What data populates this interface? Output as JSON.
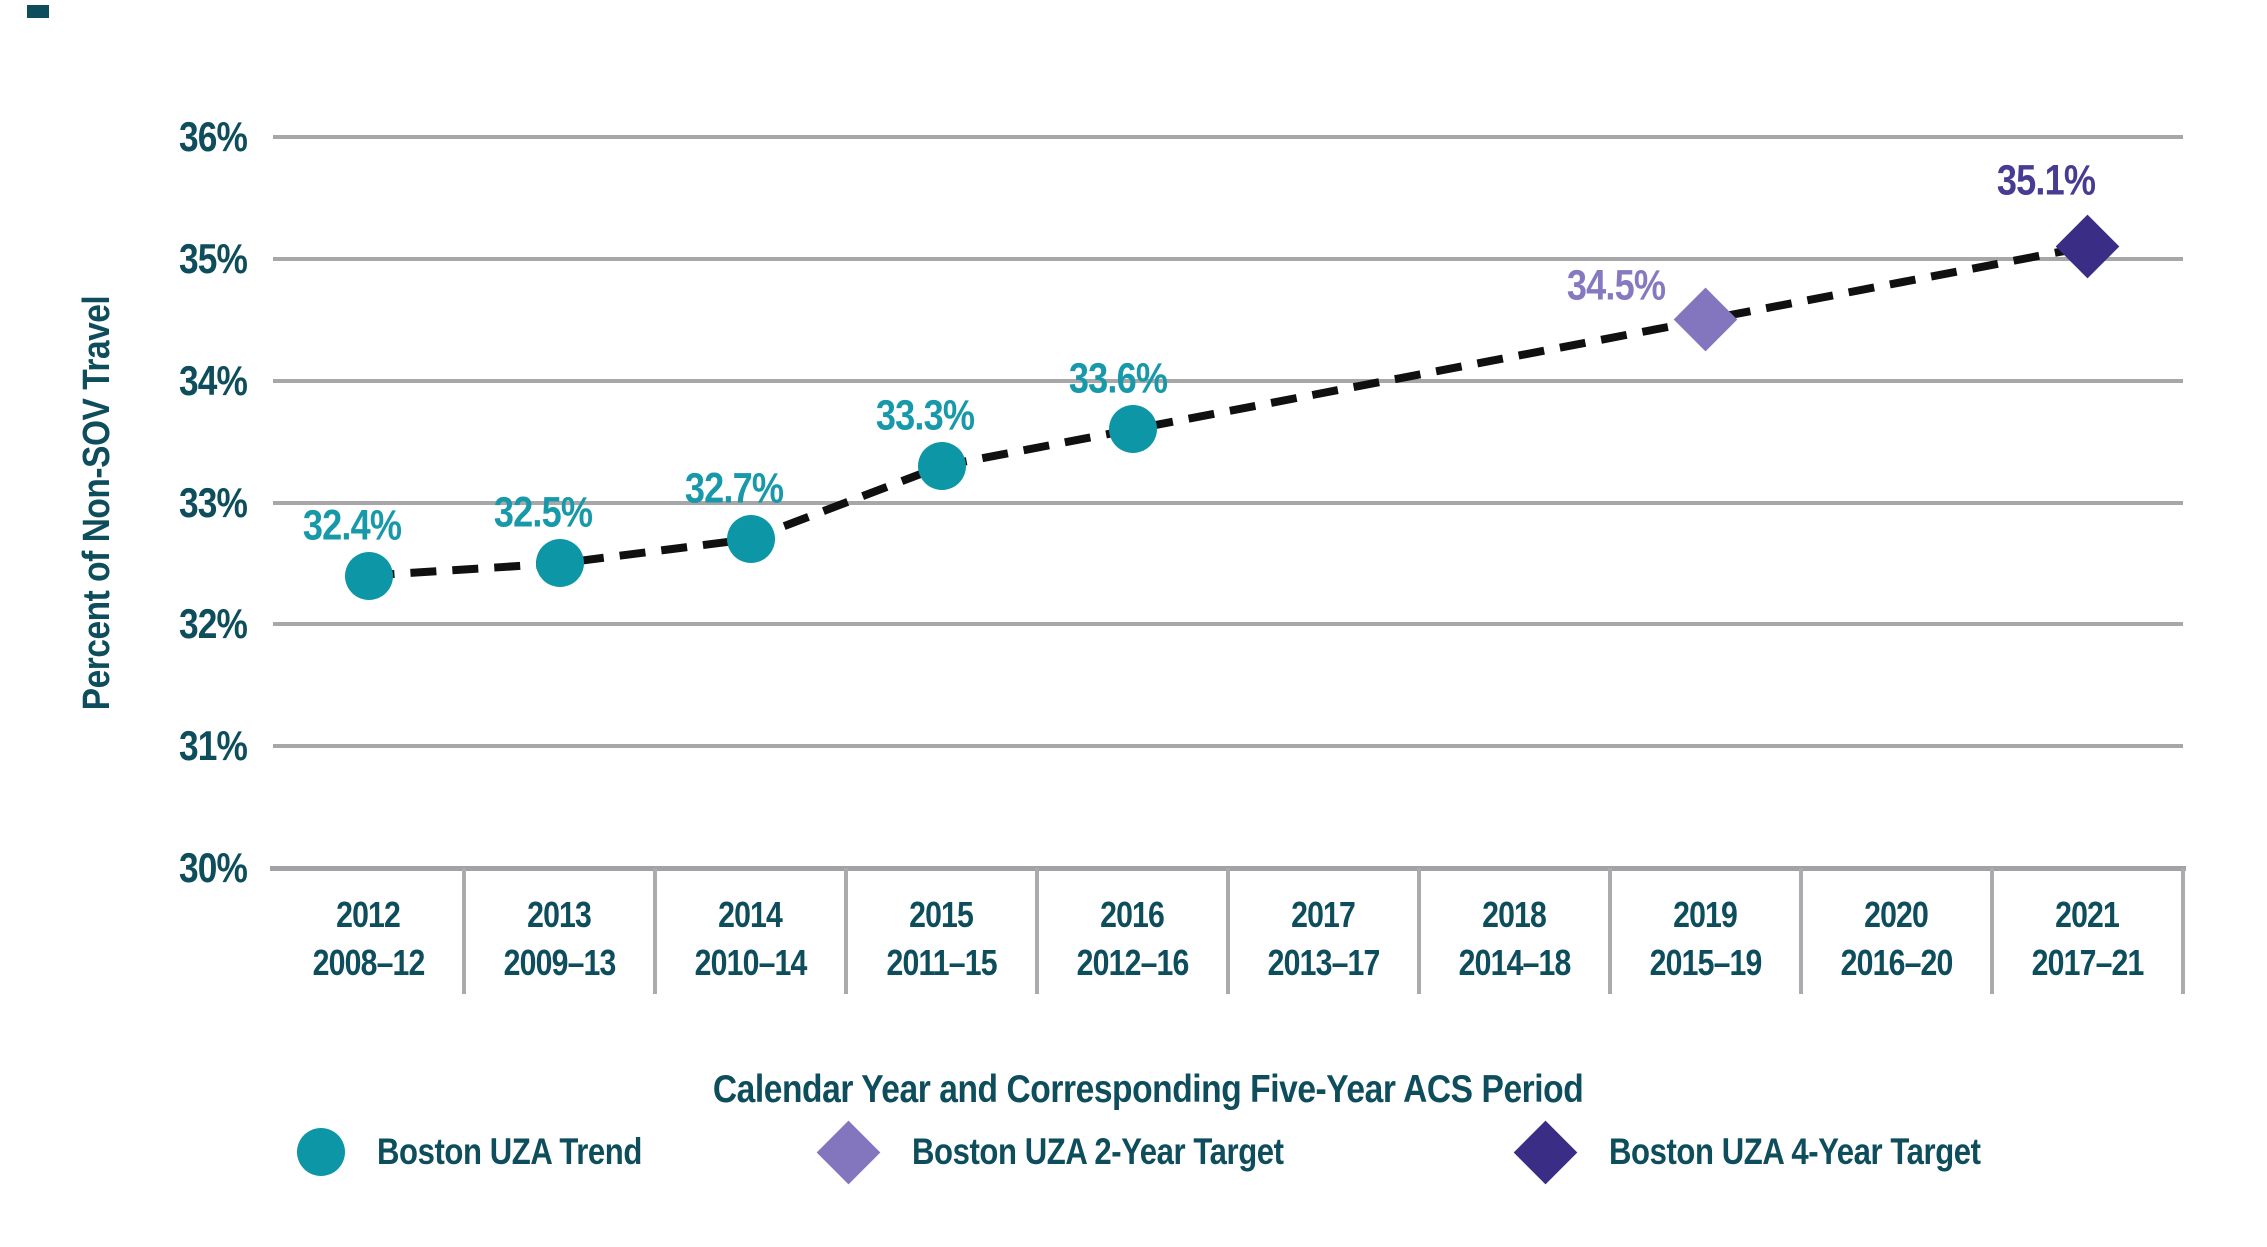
{
  "colors": {
    "axis_text": "#0E4D5C",
    "gridline": "#A7A7AA",
    "background": "#FFFFFF",
    "trend_teal": "#0D96A6",
    "teal_label": "#1899A9",
    "target2_purple": "#8375BE",
    "target4_purple": "#392D86",
    "dashed_line": "#101010"
  },
  "artifact_note": "small dark cropped-text mark at top-left corner",
  "chart_data": {
    "type": "scatter",
    "title": "",
    "ylabel": "Percent of Non-SOV Travel",
    "xlabel": "Calendar Year and Corresponding Five-Year ACS Period",
    "ylim": [
      30,
      36
    ],
    "grid": true,
    "legend_position": "bottom",
    "y_tick_values": [
      36,
      35,
      34,
      33,
      32,
      31,
      30
    ],
    "y_tick_labels": [
      "36%",
      "35%",
      "34%",
      "33%",
      "32%",
      "31%",
      "30%"
    ],
    "categories": [
      {
        "year": "2012",
        "period": "2008–12"
      },
      {
        "year": "2013",
        "period": "2009–13"
      },
      {
        "year": "2014",
        "period": "2010–14"
      },
      {
        "year": "2015",
        "period": "2011–15"
      },
      {
        "year": "2016",
        "period": "2012–16"
      },
      {
        "year": "2017",
        "period": "2013–17"
      },
      {
        "year": "2018",
        "period": "2014–18"
      },
      {
        "year": "2019",
        "period": "2015–19"
      },
      {
        "year": "2020",
        "period": "2016–20"
      },
      {
        "year": "2021",
        "period": "2017–21"
      }
    ],
    "connector": {
      "style": "dashed",
      "color": "#101010",
      "width": 8,
      "dash": [
        26,
        16
      ]
    },
    "series": [
      {
        "name": "Boston UZA Trend",
        "marker": "circle",
        "marker_size": 48,
        "color": "#0D96A6",
        "label_color": "#1899A9",
        "points": [
          {
            "category": "2012",
            "value": 32.4,
            "label": "32.4%",
            "label_dx": -17,
            "label_dy": -50
          },
          {
            "category": "2013",
            "value": 32.5,
            "label": "32.5%",
            "label_dx": -17,
            "label_dy": -50
          },
          {
            "category": "2014",
            "value": 32.7,
            "label": "32.7%",
            "label_dx": -17,
            "label_dy": -50
          },
          {
            "category": "2015",
            "value": 33.3,
            "label": "33.3%",
            "label_dx": -17,
            "label_dy": -50
          },
          {
            "category": "2016",
            "value": 33.6,
            "label": "33.6%",
            "label_dx": -15,
            "label_dy": -50
          }
        ]
      },
      {
        "name": "Boston UZA 2-Year Target",
        "marker": "diamond",
        "marker_size": 45,
        "color": "#8375BE",
        "label_color": "#8679C0",
        "points": [
          {
            "category": "2019",
            "value": 34.5,
            "label": "34.5%",
            "label_dx": -90,
            "label_dy": -34
          }
        ]
      },
      {
        "name": "Boston UZA 4-Year Target",
        "marker": "diamond",
        "marker_size": 45,
        "color": "#392D86",
        "label_color": "#473C92",
        "points": [
          {
            "category": "2021",
            "value": 35.1,
            "label": "35.1%",
            "label_dx": -42,
            "label_dy": -66
          }
        ]
      }
    ]
  }
}
